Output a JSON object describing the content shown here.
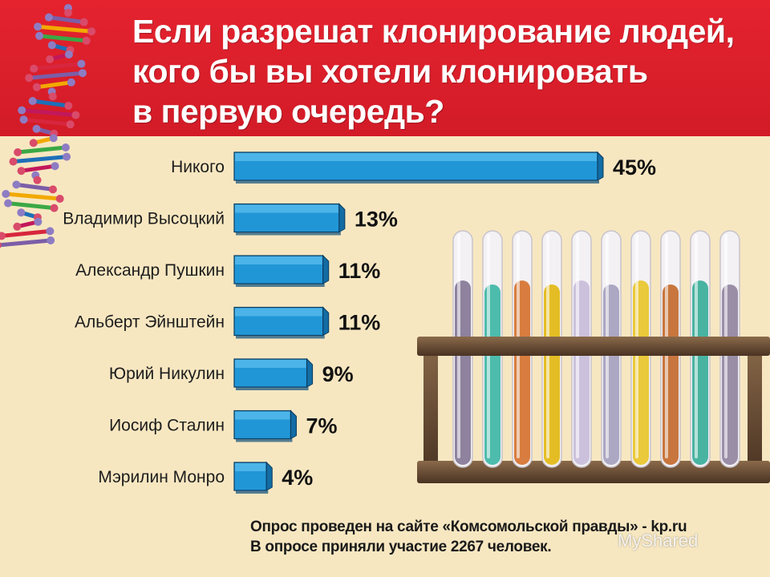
{
  "title_lines": [
    "Если разрешат клонирование людей,",
    "кого бы вы хотели клонировать",
    "в первую очередь?"
  ],
  "footer": {
    "line1": "Опрос проведен на сайте «Комсомольской правды» - kp.ru",
    "line2": "В опросе приняли участие 2267 человек."
  },
  "watermark": "MyShared",
  "colors": {
    "header": "#d21b27",
    "background": "#f7e7c1",
    "bar": "#1f8fce"
  },
  "chart_data": {
    "type": "bar",
    "orientation": "horizontal",
    "title": "Если разрешат клонирование людей, кого бы вы хотели клонировать в первую очередь?",
    "categories": [
      "Никого",
      "Владимир Высоцкий",
      "Александр Пушкин",
      "Альберт Эйнштейн",
      "Юрий Никулин",
      "Иосиф Сталин",
      "Мэрилин Монро"
    ],
    "values": [
      45,
      13,
      11,
      11,
      9,
      7,
      4
    ],
    "value_labels": [
      "45%",
      "13%",
      "11%",
      "11%",
      "9%",
      "7%",
      "4%"
    ],
    "unit": "%",
    "xlim": [
      0,
      45
    ],
    "grid": false,
    "legend": "none"
  }
}
